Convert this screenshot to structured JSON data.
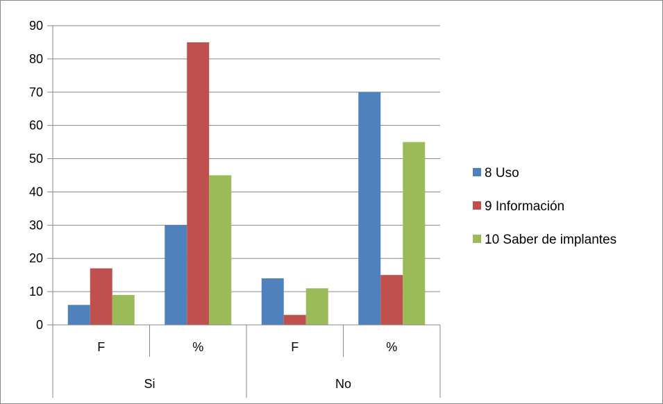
{
  "chart_data": {
    "type": "bar",
    "categories": [
      {
        "label": "F",
        "group": "Si"
      },
      {
        "label": "%",
        "group": "Si"
      },
      {
        "label": "F",
        "group": "No"
      },
      {
        "label": "%",
        "group": "No"
      }
    ],
    "groups": [
      "Si",
      "No"
    ],
    "series": [
      {
        "name": "8 Uso",
        "color": "#4F81BD",
        "values": [
          6,
          30,
          14,
          70
        ]
      },
      {
        "name": "9 Información",
        "color": "#C0504D",
        "values": [
          17,
          85,
          3,
          15
        ]
      },
      {
        "name": "10 Saber de implantes",
        "color": "#9BBB59",
        "values": [
          9,
          45,
          11,
          55
        ]
      }
    ],
    "ylim": [
      0,
      90
    ],
    "ytick_step": 10,
    "grid": true,
    "legend_position": "right"
  }
}
